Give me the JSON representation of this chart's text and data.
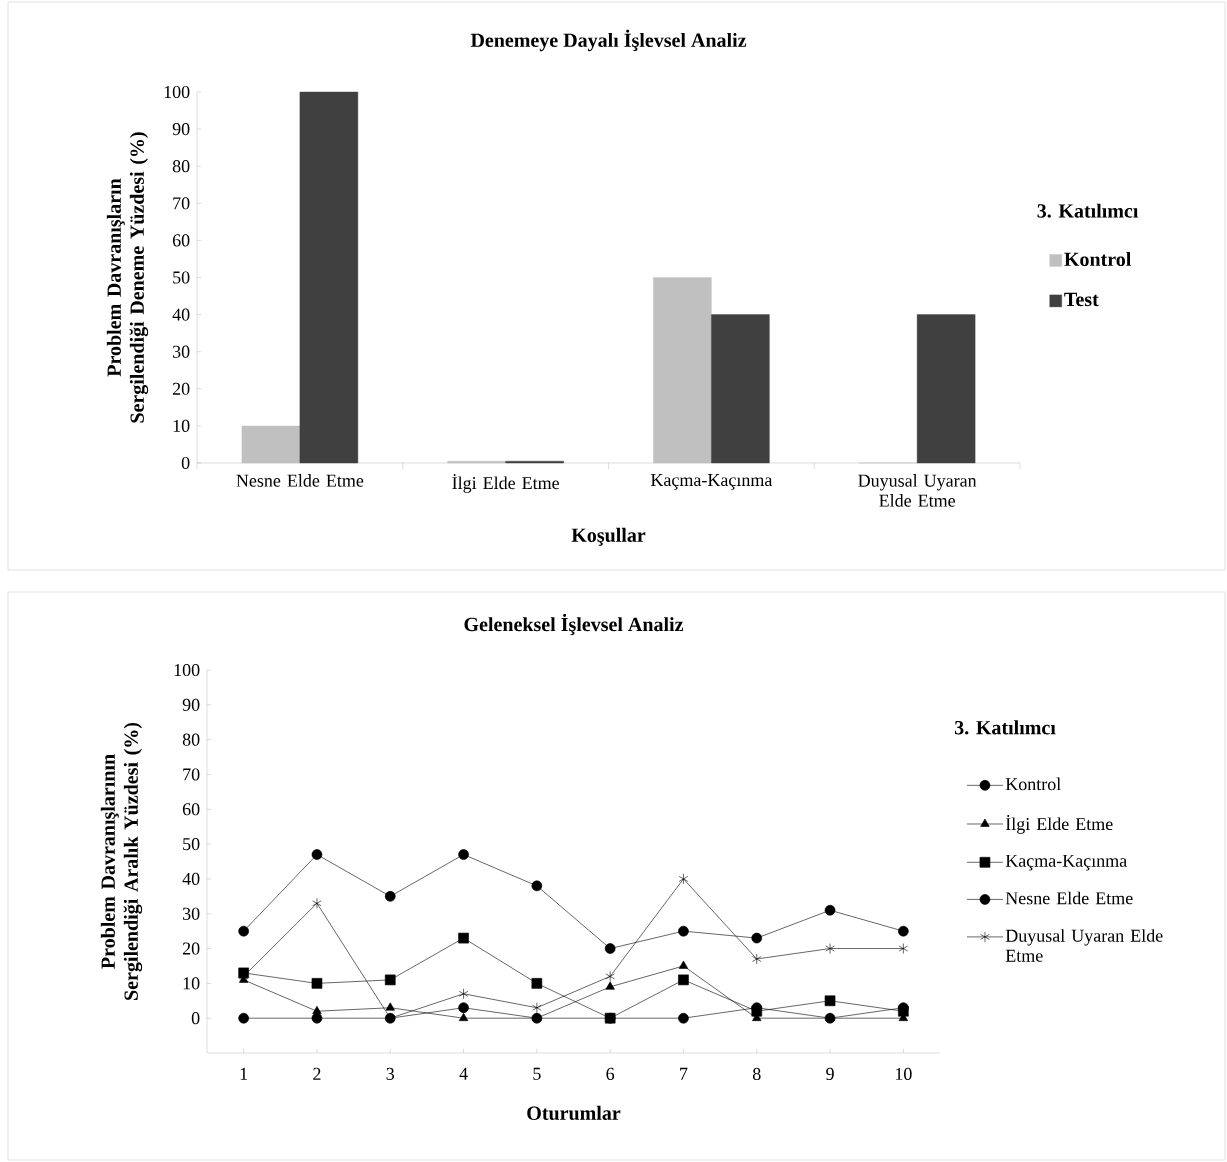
{
  "chart_data": [
    {
      "type": "bar",
      "title": "Denemeye  Dayalı İşlevsel Analiz",
      "xlabel": "Koşullar",
      "ylabel": "Problem Davranışların Sergilendiği Deneme Yüzdesi (%)",
      "legend_title": "3. Katılımcı",
      "categories": [
        "Nesne Elde Etme",
        "İlgi Elde Etme",
        "Kaçma-Kaçınma",
        "Duyusal Uyaran Elde Etme"
      ],
      "series": [
        {
          "name": "Kontrol",
          "color": "#c0c0c0",
          "values": [
            10,
            0.5,
            50,
            0
          ]
        },
        {
          "name": "Test",
          "color": "#404040",
          "values": [
            100,
            0.5,
            40,
            40
          ]
        }
      ],
      "ylim": [
        0,
        100
      ],
      "yticks": [
        0,
        10,
        20,
        30,
        40,
        50,
        60,
        70,
        80,
        90,
        100
      ],
      "grid": false,
      "legend": "right"
    },
    {
      "type": "line",
      "title": "Geleneksel İşlevsel Analiz",
      "xlabel": "Oturumlar",
      "ylabel": "Problem Davranışlarının Sergilendiği Aralık Yüzdesi (%)",
      "legend_title": "3. Katılımcı",
      "x": [
        1,
        2,
        3,
        4,
        5,
        6,
        7,
        8,
        9,
        10
      ],
      "series": [
        {
          "name": "Kontrol",
          "color": "#000000",
          "marker": "circle",
          "values": [
            0,
            0,
            0,
            3,
            0,
            0,
            0,
            3,
            0,
            3
          ]
        },
        {
          "name": "İlgi Elde Etme",
          "color": "#000000",
          "marker": "triangle",
          "values": [
            11,
            2,
            3,
            0,
            0,
            9,
            15,
            0,
            0,
            0
          ]
        },
        {
          "name": "Kaçma-Kaçınma",
          "color": "#000000",
          "marker": "square",
          "values": [
            13,
            10,
            11,
            23,
            10,
            0,
            11,
            2,
            5,
            2
          ]
        },
        {
          "name": "Nesne Elde Etme",
          "color": "#000000",
          "marker": "circle",
          "values": [
            25,
            47,
            35,
            47,
            38,
            20,
            25,
            23,
            31,
            25
          ]
        },
        {
          "name": "Duyusal Uyaran Elde Etme",
          "color": "#000000",
          "marker": "cross",
          "values": [
            12,
            33,
            0,
            7,
            3,
            12,
            40,
            17,
            20,
            20
          ]
        }
      ],
      "xlim": [
        0.5,
        10.5
      ],
      "xticks": [
        1,
        2,
        3,
        4,
        5,
        6,
        7,
        8,
        9,
        10
      ],
      "ylim": [
        -10,
        100
      ],
      "yticks": [
        0,
        10,
        20,
        30,
        40,
        50,
        60,
        70,
        80,
        90,
        100
      ],
      "grid": false,
      "legend": "right",
      "line_style": "solid"
    }
  ]
}
